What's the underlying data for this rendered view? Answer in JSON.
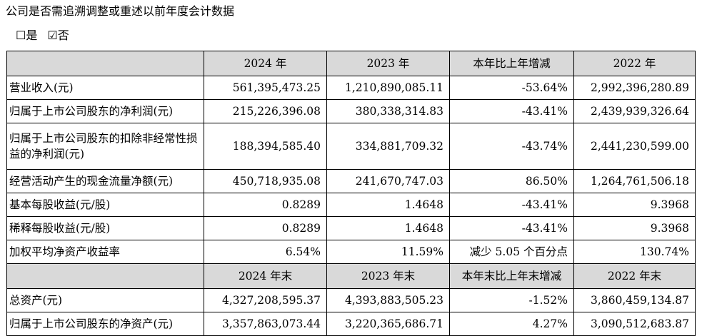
{
  "question": "公司是否需追溯调整或重述以前年度会计数据",
  "choices": [
    {
      "box": "☐",
      "label": "是"
    },
    {
      "box": "☑",
      "label": "否"
    }
  ],
  "table1": {
    "headers": [
      "",
      "2024 年",
      "2023 年",
      "本年比上年增减",
      "2022 年"
    ],
    "rows": [
      {
        "label": "营业收入(元)",
        "values": [
          "561,395,473.25",
          "1,210,890,085.11",
          "-53.64%",
          "2,992,396,280.89"
        ]
      },
      {
        "label": "归属于上市公司股东的净利润(元)",
        "values": [
          "215,226,396.08",
          "380,338,314.83",
          "-43.41%",
          "2,439,939,326.64"
        ]
      },
      {
        "label": "归属于上市公司股东的扣除非经常性损益的净利润(元)",
        "values": [
          "188,394,585.40",
          "334,881,709.32",
          "-43.74%",
          "2,441,230,599.00"
        ]
      },
      {
        "label": "经营活动产生的现金流量净额(元)",
        "values": [
          "450,718,935.08",
          "241,670,747.03",
          "86.50%",
          "1,264,761,506.18"
        ]
      },
      {
        "label": "基本每股收益(元/股)",
        "values": [
          "0.8289",
          "1.4648",
          "-43.41%",
          "9.3968"
        ]
      },
      {
        "label": "稀释每股收益(元/股)",
        "values": [
          "0.8289",
          "1.4648",
          "-43.41%",
          "9.3968"
        ]
      },
      {
        "label": "加权平均净资产收益率",
        "values": [
          "6.54%",
          "11.59%",
          "减少 5.05 个百分点",
          "130.74%"
        ]
      }
    ]
  },
  "table2": {
    "headers": [
      "",
      "2024 年末",
      "2023 年末",
      "本年末比上年末增减",
      "2022 年末"
    ],
    "rows": [
      {
        "label": "总资产(元)",
        "values": [
          "4,327,208,595.37",
          "4,393,883,505.23",
          "-1.52%",
          "3,860,459,134.87"
        ]
      },
      {
        "label": "归属于上市公司股东的净资产(元)",
        "values": [
          "3,357,863,073.44",
          "3,220,365,686.71",
          "4.27%",
          "3,090,512,683.87"
        ]
      }
    ]
  }
}
